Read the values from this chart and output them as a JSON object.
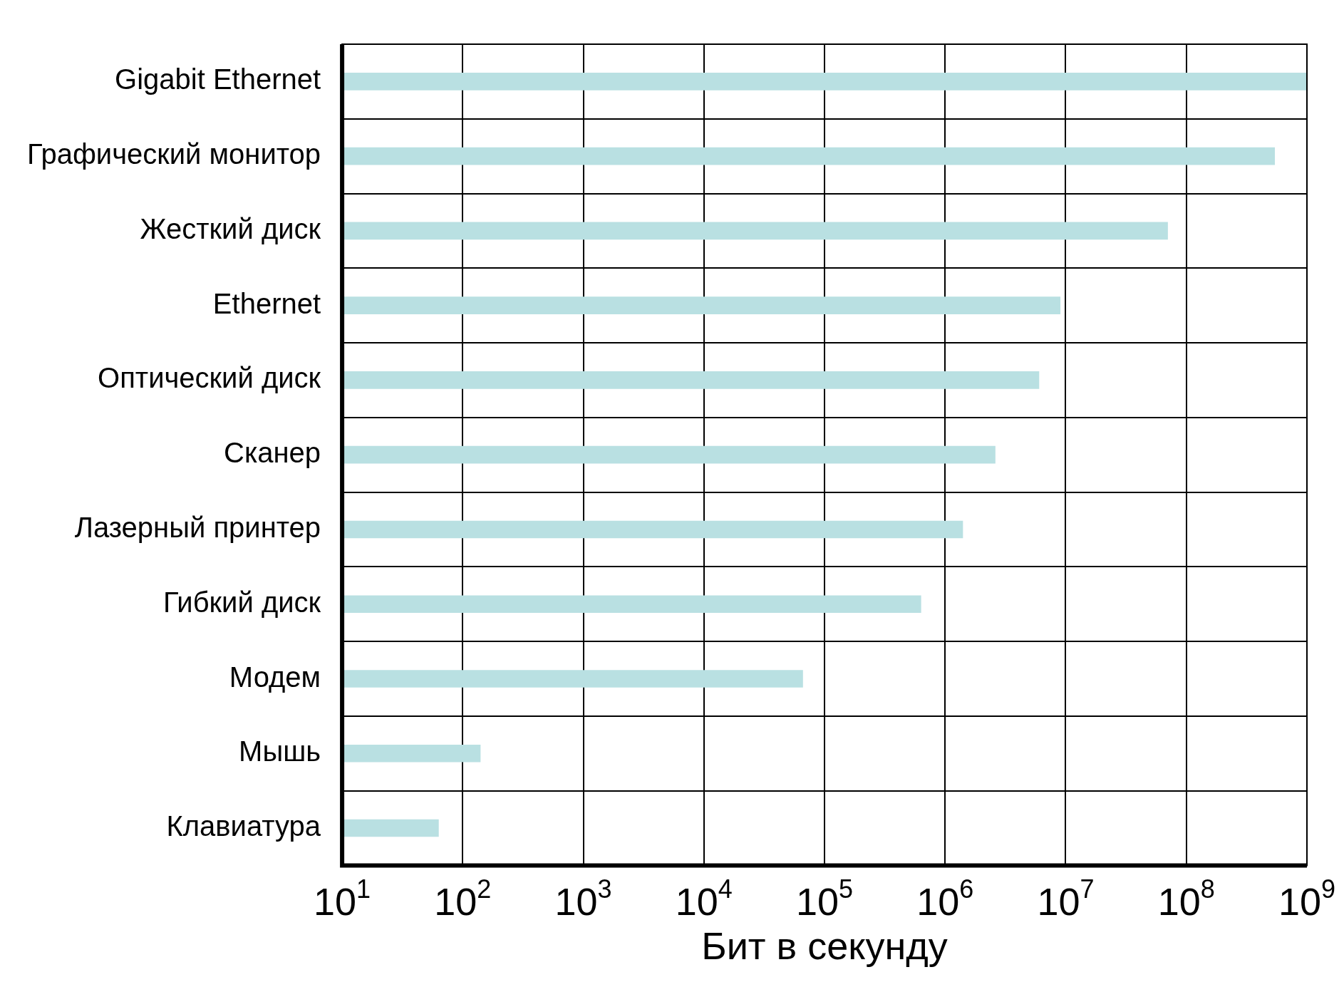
{
  "chart_data": {
    "type": "bar",
    "orientation": "horizontal",
    "xlabel": "Бит в секунду",
    "categories": [
      "Gigabit Ethernet",
      "Графический монитор",
      "Жесткий диск",
      "Ethernet",
      "Оптический диск",
      "Сканер",
      "Лазерный принтер",
      "Гибкий диск",
      "Модем",
      "Мышь",
      "Клавиатура"
    ],
    "values": [
      1000000000,
      540000000,
      70000000,
      9000000,
      6000000,
      2600000,
      1400000,
      630000,
      66000,
      140,
      63
    ],
    "color": "#b9e0e2",
    "log": "x",
    "xlim": [
      10,
      1000000000
    ],
    "xticks": [
      {
        "value": 10,
        "label": "10$^{1}$"
      },
      {
        "value": 100,
        "label": "10$^{2}$"
      },
      {
        "value": 1000,
        "label": "10$^{3}$"
      },
      {
        "value": 10000,
        "label": "10$^{4}$"
      },
      {
        "value": 100000,
        "label": "10$^{5}$"
      },
      {
        "value": 1000000,
        "label": "10$^{6}$"
      },
      {
        "value": 10000000,
        "label": "10$^{7}$"
      },
      {
        "value": 100000000,
        "label": "10$^{8}$"
      },
      {
        "value": 1000000000,
        "label": "10$^{9}$"
      }
    ],
    "grid": true,
    "legend": false
  }
}
